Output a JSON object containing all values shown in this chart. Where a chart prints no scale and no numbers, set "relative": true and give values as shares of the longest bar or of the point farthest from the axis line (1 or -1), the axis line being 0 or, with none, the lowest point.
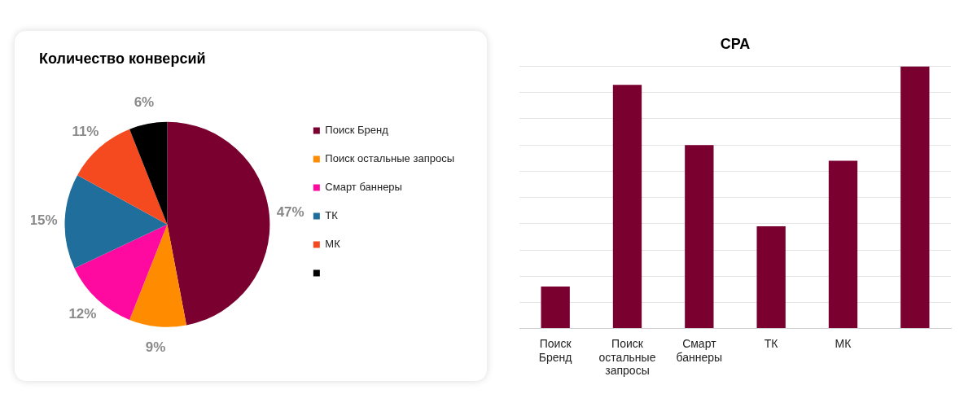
{
  "chart_data": [
    {
      "type": "pie",
      "title": "Количество конверсий",
      "categories": [
        "Поиск Бренд",
        "Поиск остальные запросы",
        "Смарт баннеры",
        "ТК",
        "МК",
        null
      ],
      "values": [
        47,
        9,
        12,
        15,
        11,
        6
      ],
      "colors": [
        "#7a0030",
        "#ff8c00",
        "#ff0aa0",
        "#1f6e9c",
        "#f54a1f",
        "#000000"
      ],
      "value_labels": [
        "47%",
        "9%",
        "12%",
        "15%",
        "11%",
        "6%"
      ],
      "legend": "right"
    },
    {
      "type": "bar",
      "title": "CPA",
      "categories": [
        "Поиск Бренд",
        "Поиск остальные запросы",
        "Смарт баннеры",
        "ТК",
        "МК",
        null
      ],
      "relative": true,
      "values": [
        0.16,
        0.93,
        0.7,
        0.39,
        0.64,
        1.0
      ],
      "color": "#7a0030",
      "grid": "y",
      "legend": false
    }
  ]
}
